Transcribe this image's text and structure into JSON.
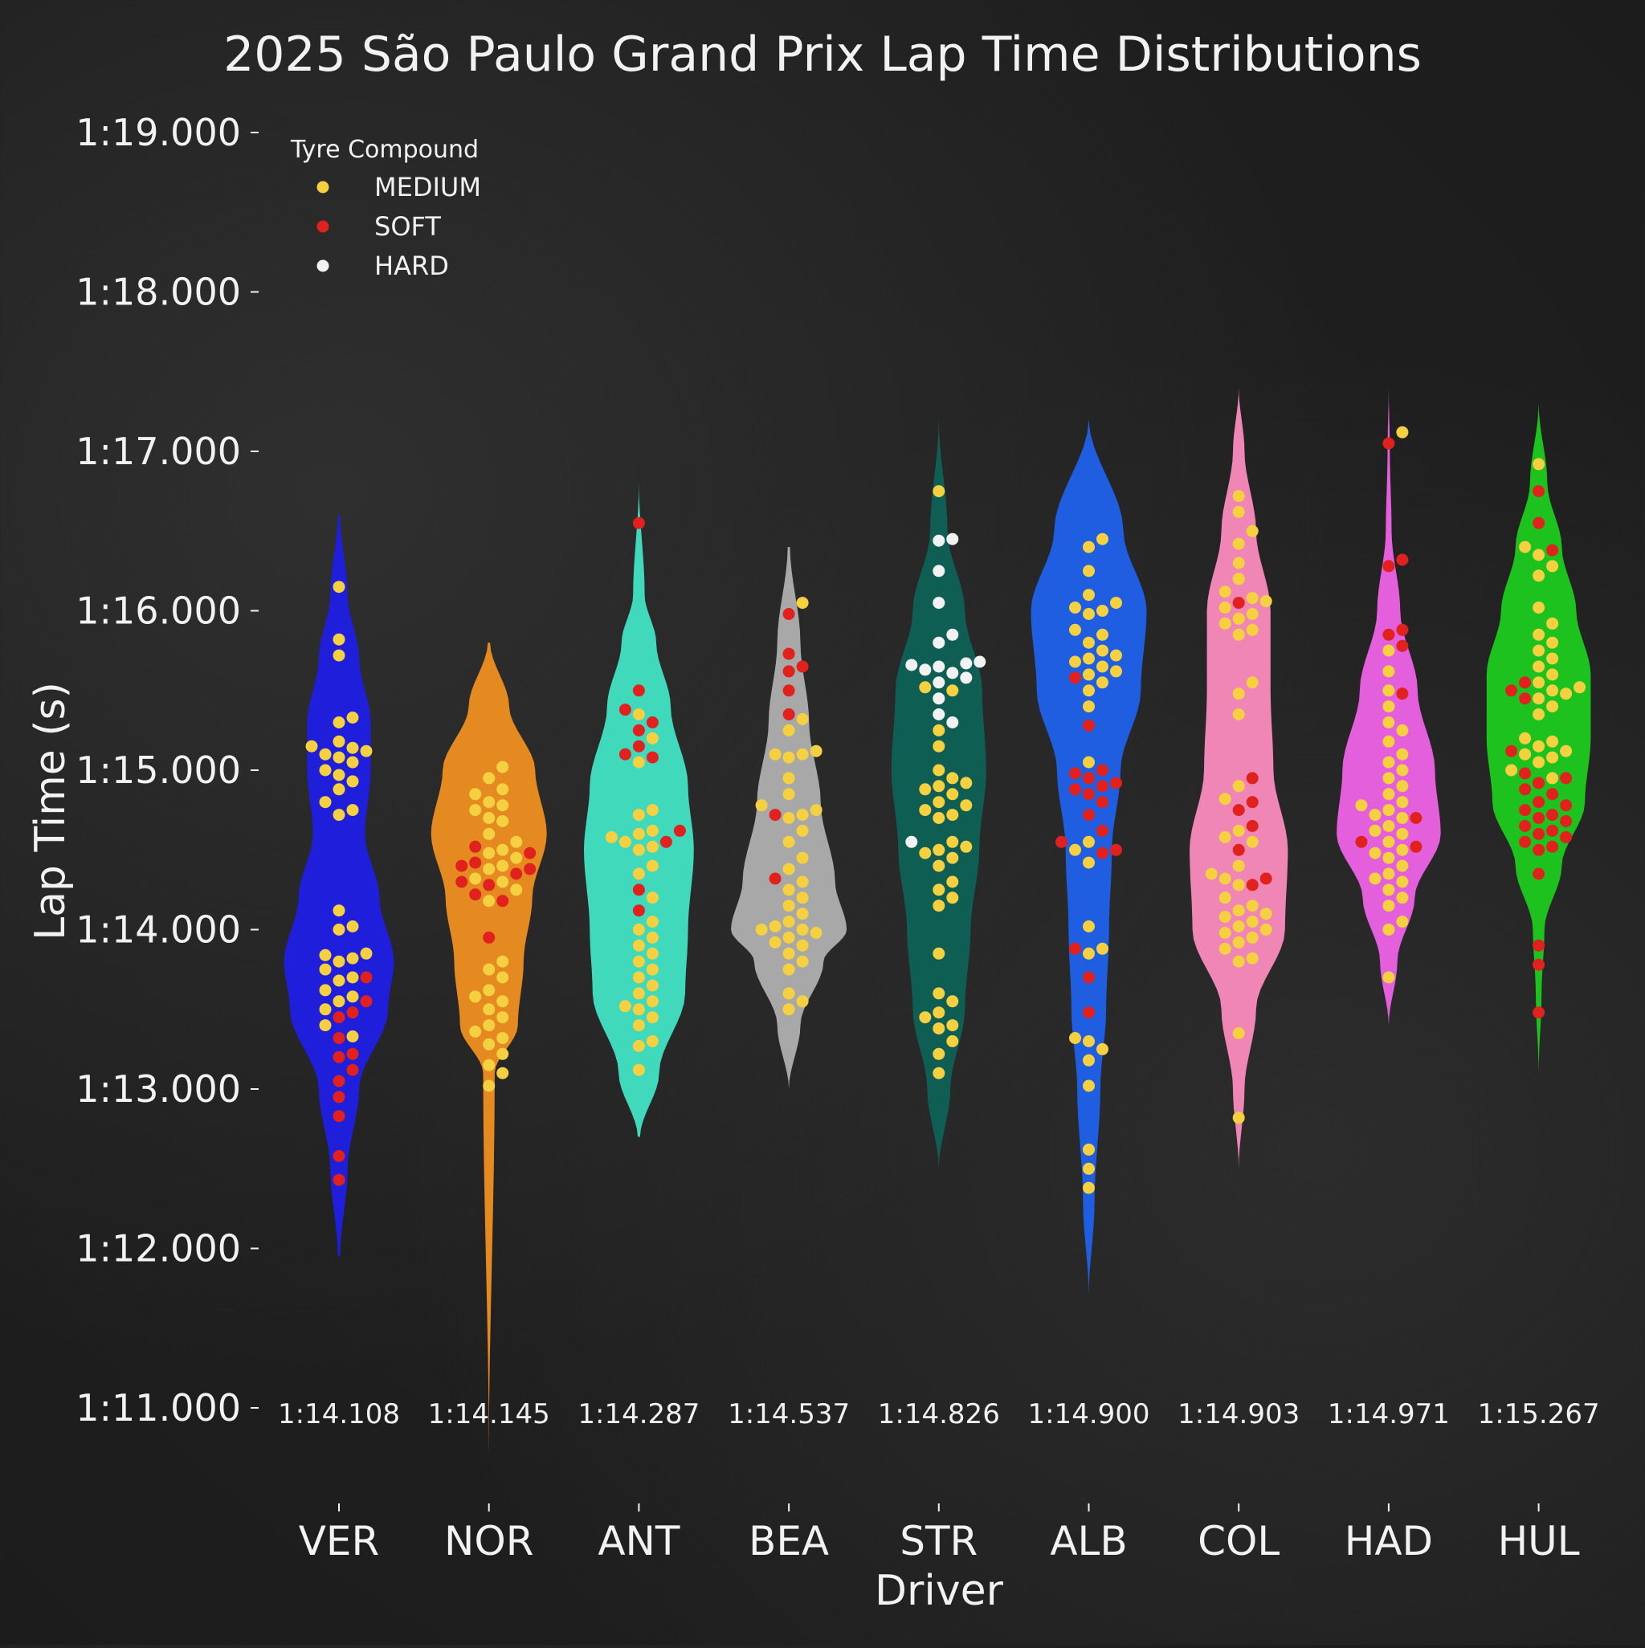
{
  "chart_data": {
    "type": "violin",
    "title": "2025 São Paulo Grand Prix Lap Time Distributions",
    "xlabel": "Driver",
    "ylabel": "Lap Time (s)",
    "ylim": [
      71,
      79
    ],
    "yticks": [
      71,
      72,
      73,
      74,
      75,
      76,
      77,
      78,
      79
    ],
    "ytick_labels": [
      "1:11.000",
      "1:12.000",
      "1:13.000",
      "1:14.000",
      "1:15.000",
      "1:16.000",
      "1:17.000",
      "1:18.000",
      "1:19.000"
    ],
    "legend": {
      "title": "Tyre Compound",
      "placement": "top-left",
      "entries": [
        {
          "label": "MEDIUM",
          "color": "#f5d040"
        },
        {
          "label": "SOFT",
          "color": "#e0211d"
        },
        {
          "label": "HARD",
          "color": "#f2f2f2"
        }
      ]
    },
    "drivers": [
      {
        "name": "VER",
        "color": "#1e1edb",
        "median_label": "1:14.108",
        "density": [
          [
            71.95,
            0.02
          ],
          [
            72.5,
            0.15
          ],
          [
            73.0,
            0.35
          ],
          [
            73.5,
            0.85
          ],
          [
            73.8,
            0.95
          ],
          [
            74.2,
            0.7
          ],
          [
            74.6,
            0.45
          ],
          [
            75.0,
            0.55
          ],
          [
            75.3,
            0.55
          ],
          [
            75.7,
            0.35
          ],
          [
            76.1,
            0.15
          ],
          [
            76.6,
            0.02
          ]
        ],
        "points": [
          {
            "c": "M",
            "v": [
              76.15,
              75.82,
              75.72,
              75.33,
              75.3,
              75.18,
              75.15,
              75.14,
              75.12,
              75.1,
              75.08,
              75.05,
              75.0,
              74.97,
              74.93,
              74.88,
              74.8,
              74.75,
              74.72,
              74.12,
              74.02,
              74.0,
              73.85,
              73.84,
              73.82,
              73.8,
              73.75,
              73.7,
              73.68,
              73.62,
              73.58,
              73.55,
              73.5,
              73.4,
              73.33
            ]
          },
          {
            "c": "S",
            "v": [
              73.7,
              73.55,
              73.48,
              73.45,
              73.32,
              73.22,
              73.2,
              73.12,
              73.05,
              72.95,
              72.83,
              72.58,
              72.43
            ]
          }
        ]
      },
      {
        "name": "NOR",
        "color": "#e58a20",
        "median_label": "1:14.145",
        "density": [
          [
            70.7,
            0.0
          ],
          [
            73.1,
            0.1
          ],
          [
            73.4,
            0.5
          ],
          [
            73.8,
            0.6
          ],
          [
            74.2,
            0.75
          ],
          [
            74.6,
            1.0
          ],
          [
            75.0,
            0.8
          ],
          [
            75.4,
            0.35
          ],
          [
            75.8,
            0.02
          ]
        ],
        "points": [
          {
            "c": "M",
            "v": [
              75.02,
              74.95,
              74.88,
              74.85,
              74.8,
              74.78,
              74.75,
              74.7,
              74.68,
              74.6,
              74.55,
              74.5,
              74.48,
              74.45,
              74.4,
              74.38,
              74.32,
              74.3,
              74.25,
              74.18,
              73.8,
              73.75,
              73.7,
              73.62,
              73.58,
              73.55,
              73.5,
              73.45,
              73.4,
              73.36,
              73.32,
              73.28,
              73.22,
              73.15,
              73.1,
              73.02
            ]
          },
          {
            "c": "S",
            "v": [
              74.52,
              74.48,
              74.42,
              74.4,
              74.38,
              74.35,
              74.3,
              74.28,
              74.22,
              74.18,
              73.95
            ]
          }
        ]
      },
      {
        "name": "ANT",
        "color": "#40d9bb",
        "median_label": "1:14.287",
        "density": [
          [
            72.7,
            0.02
          ],
          [
            73.1,
            0.35
          ],
          [
            73.6,
            0.8
          ],
          [
            74.0,
            0.85
          ],
          [
            74.5,
            0.95
          ],
          [
            74.9,
            0.85
          ],
          [
            75.4,
            0.55
          ],
          [
            75.8,
            0.3
          ],
          [
            76.1,
            0.1
          ],
          [
            76.8,
            0.0
          ]
        ],
        "points": [
          {
            "c": "M",
            "v": [
              75.35,
              75.2,
              75.05,
              74.75,
              74.72,
              74.62,
              74.6,
              74.58,
              74.55,
              74.52,
              74.5,
              74.4,
              74.35,
              74.2,
              74.05,
              74.0,
              73.95,
              73.9,
              73.85,
              73.8,
              73.75,
              73.7,
              73.65,
              73.6,
              73.55,
              73.52,
              73.5,
              73.45,
              73.4,
              73.3,
              73.27,
              73.12
            ]
          },
          {
            "c": "S",
            "v": [
              76.55,
              75.5,
              75.38,
              75.3,
              75.25,
              75.15,
              75.1,
              75.08,
              74.62,
              74.55,
              74.25,
              74.12
            ]
          }
        ]
      },
      {
        "name": "BEA",
        "color": "#a8a8a8",
        "median_label": "1:14.537",
        "density": [
          [
            73.0,
            0.0
          ],
          [
            73.4,
            0.2
          ],
          [
            73.8,
            0.6
          ],
          [
            74.0,
            1.0
          ],
          [
            74.3,
            0.8
          ],
          [
            74.8,
            0.55
          ],
          [
            75.3,
            0.35
          ],
          [
            75.8,
            0.2
          ],
          [
            76.4,
            0.02
          ]
        ],
        "points": [
          {
            "c": "M",
            "v": [
              76.05,
              75.32,
              75.25,
              75.12,
              75.1,
              75.1,
              75.08,
              74.95,
              74.85,
              74.78,
              74.75,
              74.72,
              74.7,
              74.62,
              74.55,
              74.45,
              74.38,
              74.3,
              74.25,
              74.2,
              74.15,
              74.1,
              74.05,
              74.02,
              74.0,
              74.0,
              73.98,
              73.95,
              73.92,
              73.9,
              73.85,
              73.8,
              73.75,
              73.6,
              73.55,
              73.5
            ]
          },
          {
            "c": "S",
            "v": [
              75.98,
              75.73,
              75.65,
              75.62,
              75.5,
              75.35,
              74.72,
              74.32
            ]
          }
        ]
      },
      {
        "name": "STR",
        "color": "#0f5e54",
        "median_label": "1:14.826",
        "density": [
          [
            72.5,
            0.0
          ],
          [
            73.0,
            0.2
          ],
          [
            73.5,
            0.45
          ],
          [
            74.0,
            0.55
          ],
          [
            74.5,
            0.7
          ],
          [
            75.0,
            0.82
          ],
          [
            75.5,
            0.75
          ],
          [
            76.0,
            0.45
          ],
          [
            76.5,
            0.15
          ],
          [
            77.2,
            0.0
          ]
        ],
        "points": [
          {
            "c": "M",
            "v": [
              76.75,
              75.52,
              75.5,
              75.25,
              75.15,
              75.0,
              74.95,
              74.92,
              74.9,
              74.88,
              74.85,
              74.8,
              74.78,
              74.75,
              74.72,
              74.7,
              74.55,
              74.52,
              74.5,
              74.48,
              74.45,
              74.4,
              74.3,
              74.25,
              74.2,
              74.15,
              73.85,
              73.6,
              73.55,
              73.48,
              73.45,
              73.4,
              73.38,
              73.3,
              73.22,
              73.1
            ]
          },
          {
            "c": "H",
            "v": [
              76.45,
              76.44,
              76.25,
              76.05,
              75.85,
              75.8,
              75.68,
              75.67,
              75.66,
              75.65,
              75.63,
              75.61,
              75.58,
              75.55,
              75.45,
              75.35,
              75.3,
              74.55
            ]
          }
        ]
      },
      {
        "name": "ALB",
        "color": "#1f5ee0",
        "median_label": "1:14.900",
        "density": [
          [
            71.7,
            0.0
          ],
          [
            72.3,
            0.1
          ],
          [
            73.0,
            0.2
          ],
          [
            73.5,
            0.3
          ],
          [
            74.0,
            0.35
          ],
          [
            74.5,
            0.4
          ],
          [
            75.0,
            0.55
          ],
          [
            75.5,
            0.9
          ],
          [
            76.0,
            1.0
          ],
          [
            76.5,
            0.6
          ],
          [
            77.2,
            0.0
          ]
        ],
        "points": [
          {
            "c": "M",
            "v": [
              76.45,
              76.4,
              76.25,
              76.1,
              76.05,
              76.02,
              76.0,
              75.98,
              75.88,
              75.85,
              75.8,
              75.75,
              75.72,
              75.7,
              75.68,
              75.65,
              75.62,
              75.6,
              75.55,
              75.5,
              75.4,
              75.05,
              74.55,
              74.5,
              74.42,
              74.02,
              73.88,
              73.85,
              73.32,
              73.3,
              73.25,
              73.18,
              73.02,
              72.62,
              72.5,
              72.38
            ]
          },
          {
            "c": "S",
            "v": [
              75.58,
              75.28,
              75.0,
              74.98,
              74.95,
              74.92,
              74.9,
              74.88,
              74.85,
              74.8,
              74.72,
              74.62,
              74.55,
              74.5,
              74.48,
              73.88,
              73.7,
              73.48
            ]
          }
        ]
      },
      {
        "name": "COL",
        "color": "#ef86b5",
        "median_label": "1:14.903",
        "density": [
          [
            72.5,
            0.0
          ],
          [
            73.0,
            0.1
          ],
          [
            73.5,
            0.3
          ],
          [
            74.0,
            0.8
          ],
          [
            74.5,
            0.85
          ],
          [
            75.0,
            0.6
          ],
          [
            75.5,
            0.55
          ],
          [
            76.0,
            0.55
          ],
          [
            76.5,
            0.3
          ],
          [
            77.0,
            0.1
          ],
          [
            77.4,
            0.0
          ]
        ],
        "points": [
          {
            "c": "M",
            "v": [
              76.72,
              76.62,
              76.5,
              76.42,
              76.3,
              76.2,
              76.12,
              76.08,
              76.06,
              76.02,
              75.98,
              75.95,
              75.92,
              75.88,
              75.85,
              75.55,
              75.48,
              75.35,
              74.9,
              74.82,
              74.62,
              74.58,
              74.55,
              74.4,
              74.35,
              74.32,
              74.28,
              74.2,
              74.15,
              74.12,
              74.1,
              74.08,
              74.05,
              74.02,
              74.0,
              73.98,
              73.95,
              73.92,
              73.88,
              73.82,
              73.8,
              73.35,
              72.82
            ]
          },
          {
            "c": "S",
            "v": [
              76.05,
              74.95,
              74.8,
              74.75,
              74.65,
              74.5,
              74.32,
              74.28
            ]
          }
        ]
      },
      {
        "name": "HAD",
        "color": "#e45fdc",
        "median_label": "1:14.971",
        "density": [
          [
            73.4,
            0.0
          ],
          [
            73.8,
            0.15
          ],
          [
            74.2,
            0.45
          ],
          [
            74.6,
            0.9
          ],
          [
            75.0,
            0.8
          ],
          [
            75.5,
            0.5
          ],
          [
            76.0,
            0.2
          ],
          [
            76.5,
            0.05
          ],
          [
            77.0,
            0.02
          ],
          [
            77.4,
            0.0
          ]
        ],
        "points": [
          {
            "c": "M",
            "v": [
              77.12,
              75.75,
              75.62,
              75.5,
              75.4,
              75.3,
              75.25,
              75.18,
              75.1,
              75.05,
              75.0,
              74.95,
              74.9,
              74.85,
              74.8,
              74.78,
              74.75,
              74.72,
              74.7,
              74.65,
              74.62,
              74.6,
              74.55,
              74.5,
              74.48,
              74.45,
              74.4,
              74.35,
              74.32,
              74.3,
              74.25,
              74.2,
              74.15,
              74.05,
              74.0,
              73.7
            ]
          },
          {
            "c": "S",
            "v": [
              77.05,
              76.32,
              76.28,
              75.88,
              75.85,
              75.78,
              75.48,
              74.7,
              74.55,
              74.52
            ]
          }
        ]
      },
      {
        "name": "HUL",
        "color": "#1ec21e",
        "median_label": "1:15.267",
        "density": [
          [
            73.1,
            0.0
          ],
          [
            73.6,
            0.05
          ],
          [
            74.0,
            0.1
          ],
          [
            74.4,
            0.4
          ],
          [
            74.8,
            0.8
          ],
          [
            75.2,
            0.9
          ],
          [
            75.6,
            0.9
          ],
          [
            76.0,
            0.65
          ],
          [
            76.4,
            0.4
          ],
          [
            76.8,
            0.15
          ],
          [
            77.3,
            0.0
          ]
        ],
        "points": [
          {
            "c": "M",
            "v": [
              76.92,
              76.4,
              76.35,
              76.28,
              76.22,
              76.02,
              75.92,
              75.85,
              75.8,
              75.75,
              75.7,
              75.65,
              75.6,
              75.55,
              75.52,
              75.5,
              75.48,
              75.45,
              75.4,
              75.35,
              75.2,
              75.18,
              75.15,
              75.12,
              75.1,
              75.08,
              75.05,
              75.0,
              74.95
            ]
          },
          {
            "c": "S",
            "v": [
              76.75,
              76.55,
              76.38,
              75.55,
              75.5,
              75.45,
              75.12,
              74.98,
              74.95,
              74.92,
              74.88,
              74.85,
              74.8,
              74.78,
              74.75,
              74.72,
              74.7,
              74.68,
              74.65,
              74.62,
              74.6,
              74.58,
              74.55,
              74.52,
              74.5,
              74.35,
              73.9,
              73.78,
              73.48
            ]
          }
        ]
      }
    ]
  }
}
